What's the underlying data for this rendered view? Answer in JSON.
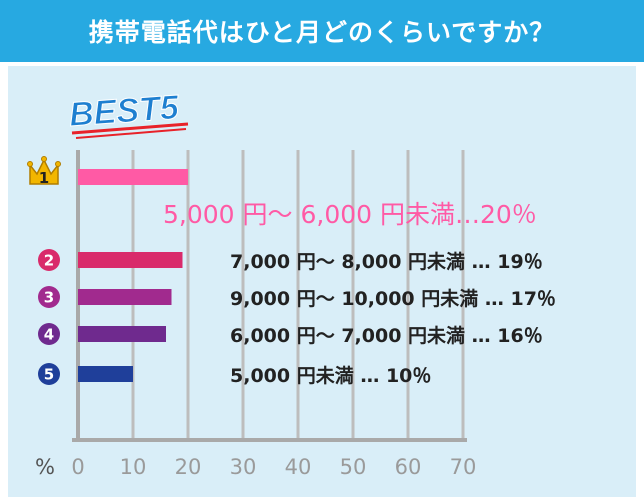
{
  "header": {
    "title": "携帯電話代はひと月どのくらいですか？"
  },
  "best_label": "BEST5",
  "colors": {
    "header_bg": "#27a9e1",
    "panel_bg": "#d9eef8",
    "grid": "#bdbdbd",
    "top_text": "#ff5aa5",
    "best_text": "#1e7fd0"
  },
  "chart_data": {
    "type": "bar",
    "orientation": "horizontal",
    "title": "携帯電話代はひと月どのくらいですか？",
    "xlabel": "%",
    "xlim": [
      0,
      70
    ],
    "xticks": [
      "0",
      "10",
      "20",
      "30",
      "40",
      "50",
      "60",
      "70"
    ],
    "grid": true,
    "bars": [
      {
        "rank": "1",
        "value": 20,
        "text": "5,000 円～ 6,000 円未満…20％",
        "color": "#ff5aa5"
      },
      {
        "rank": "2",
        "value": 19,
        "text": "7,000 円～ 8,000 円未満 … 19％",
        "color": "#d92b6b"
      },
      {
        "rank": "3",
        "value": 17,
        "text": "9,000 円～ 10,000 円未満 … 17％",
        "color": "#a12a8e"
      },
      {
        "rank": "4",
        "value": 16,
        "text": "6,000 円～ 7,000 円未満 … 16％",
        "color": "#6f2a8e"
      },
      {
        "rank": "5",
        "value": 10,
        "text": "5,000 円未満 … 10％",
        "color": "#1f3f9a"
      }
    ]
  }
}
